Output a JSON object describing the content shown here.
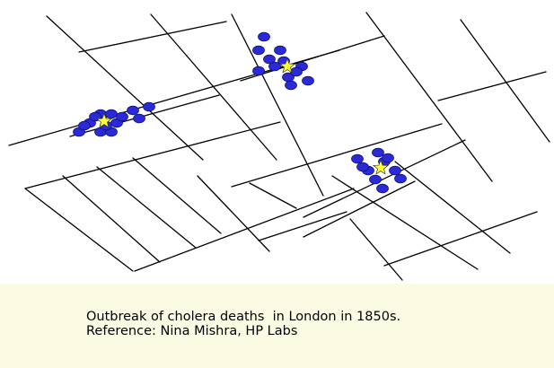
{
  "caption": {
    "line1": "Outbreak of cholera deaths  in London in 1850s.",
    "line2": "Reference: Nina Mishra, HP Labs"
  },
  "map": {
    "street_color": "#000000",
    "death_marker_color": "#2a2ad6",
    "pump_marker_color": "#ffff33",
    "clusters": [
      {
        "name": "west",
        "deaths": 14,
        "pumps": 1
      },
      {
        "name": "north",
        "deaths": 12,
        "pumps": 1
      },
      {
        "name": "east",
        "deaths": 10,
        "pumps": 1
      }
    ]
  },
  "colors": {
    "map_background": "#ffffff",
    "caption_background": "#fbfbe4",
    "text": "#000000"
  }
}
